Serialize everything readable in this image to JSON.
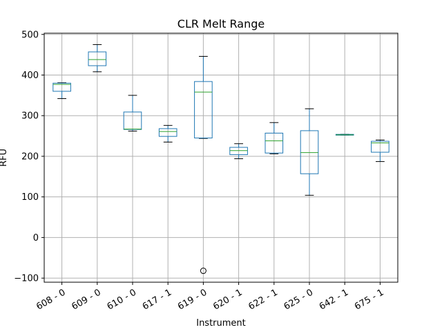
{
  "chart_data": {
    "type": "box",
    "title": "CLR Melt Range",
    "xlabel": "Instrument",
    "ylabel": "RFU",
    "ylim": [
      -110,
      503
    ],
    "yticks": [
      -100,
      0,
      100,
      200,
      300,
      400,
      500
    ],
    "grid": true,
    "legend": "none",
    "colors": {
      "box": "#1f77b4",
      "median": "#2ca02c",
      "whisker": "#000000",
      "grid": "#b0b0b0"
    },
    "categories": [
      "608 - 0",
      "609 - 0",
      "610 - 0",
      "617 - 1",
      "619 - 0",
      "620 - 1",
      "622 - 1",
      "625 - 0",
      "642 - 1",
      "675 - 1"
    ],
    "boxes": [
      {
        "whisker_low": 342,
        "q1": 360,
        "median": 377,
        "q3": 380,
        "whisker_high": 381,
        "outliers": []
      },
      {
        "whisker_low": 408,
        "q1": 423,
        "median": 438,
        "q3": 457,
        "whisker_high": 475,
        "outliers": []
      },
      {
        "whisker_low": 262,
        "q1": 266,
        "median": 267,
        "q3": 309,
        "whisker_high": 350,
        "outliers": []
      },
      {
        "whisker_low": 235,
        "q1": 249,
        "median": 261,
        "q3": 268,
        "whisker_high": 276,
        "outliers": []
      },
      {
        "whisker_low": 244,
        "q1": 245,
        "median": 358,
        "q3": 384,
        "whisker_high": 446,
        "outliers": [
          -82
        ]
      },
      {
        "whisker_low": 194,
        "q1": 204,
        "median": 214,
        "q3": 222,
        "whisker_high": 231,
        "outliers": []
      },
      {
        "whisker_low": 206,
        "q1": 208,
        "median": 238,
        "q3": 257,
        "whisker_high": 283,
        "outliers": []
      },
      {
        "whisker_low": 104,
        "q1": 157,
        "median": 209,
        "q3": 263,
        "whisker_high": 317,
        "outliers": []
      },
      {
        "whisker_low": 252,
        "q1": 252,
        "median": 253,
        "q3": 254,
        "whisker_high": 254,
        "outliers": []
      },
      {
        "whisker_low": 187,
        "q1": 210,
        "median": 233,
        "q3": 237,
        "whisker_high": 240,
        "outliers": []
      }
    ]
  }
}
